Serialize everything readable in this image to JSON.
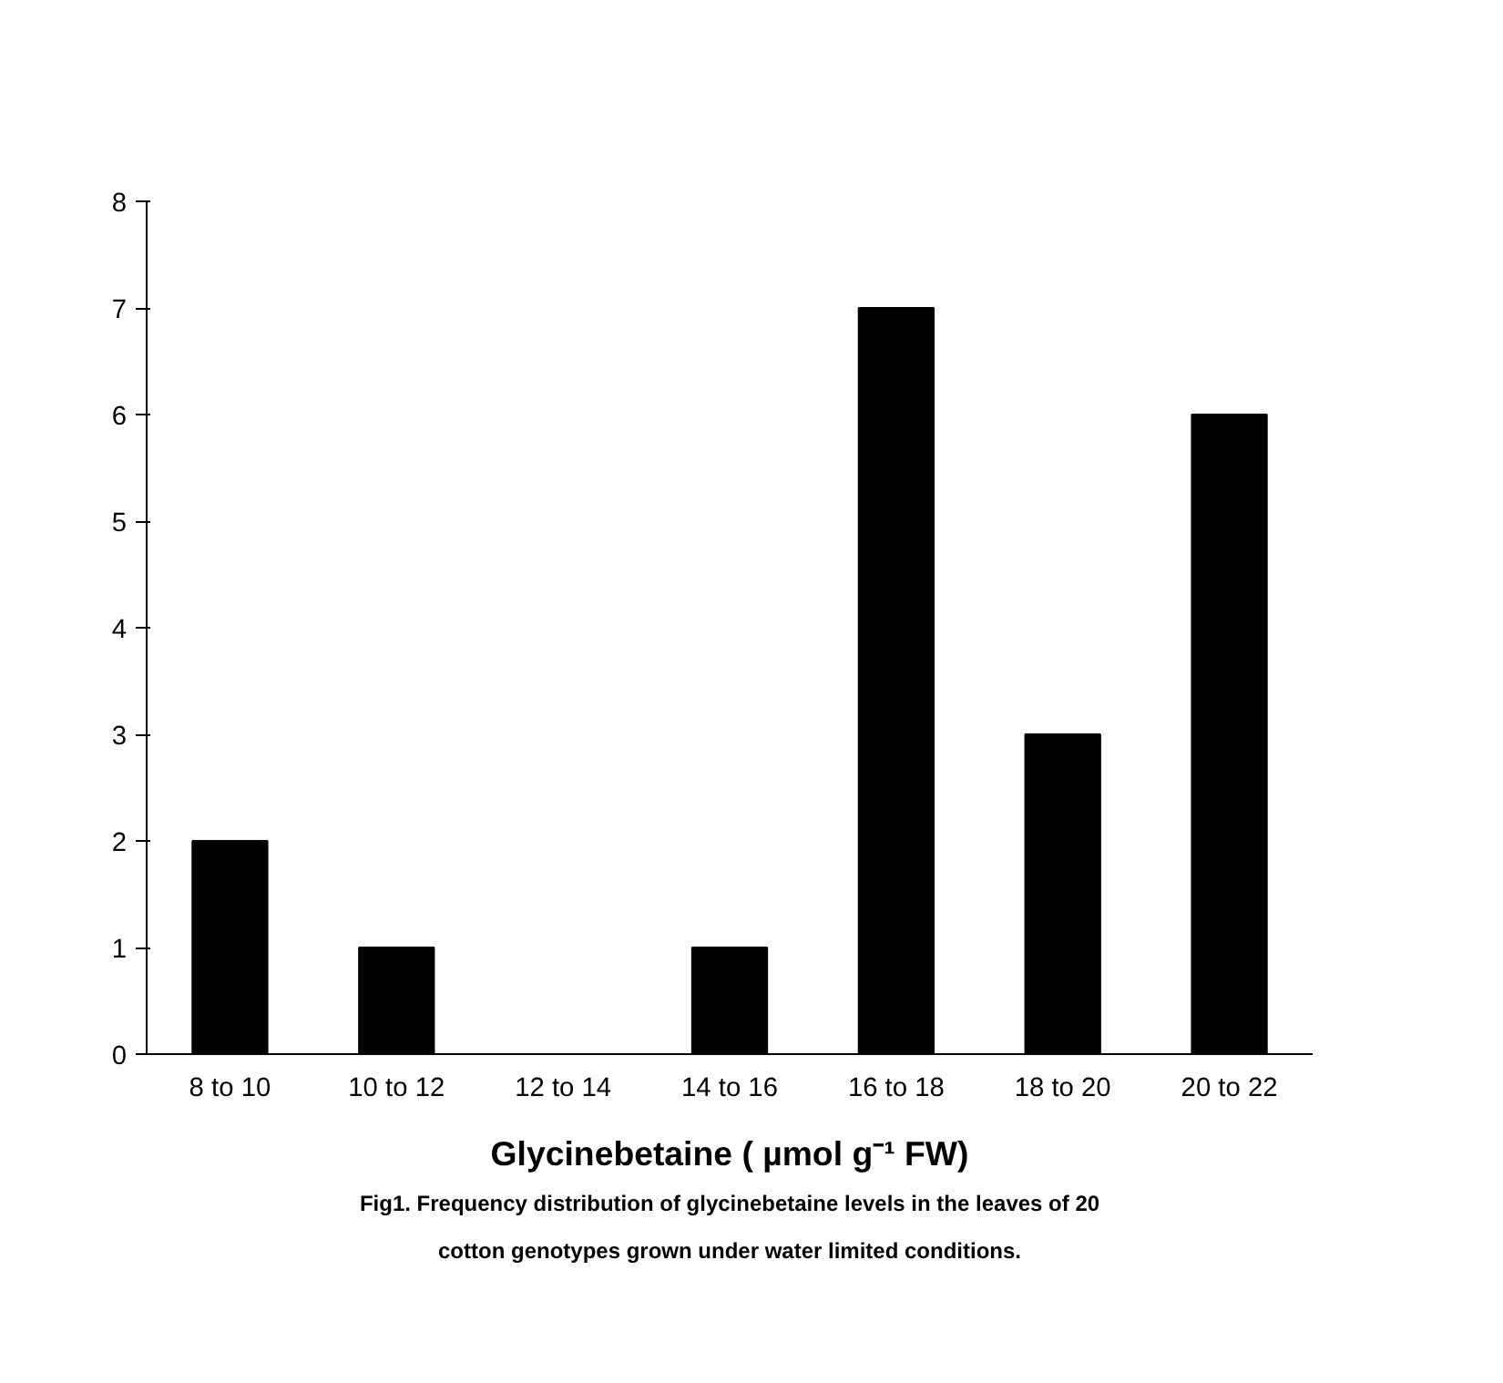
{
  "chart_data": {
    "type": "bar",
    "categories": [
      "8 to 10",
      "10 to 12",
      "12 to 14",
      "14 to 16",
      "16 to 18",
      "18 to 20",
      "20 to 22"
    ],
    "values": [
      2,
      1,
      0,
      1,
      7,
      3,
      6
    ],
    "color": "#000000",
    "xlabel": "Glycinebetaine ( µmol g⁻¹ FW)",
    "ylim": [
      0,
      8
    ],
    "yticks": [
      0,
      1,
      2,
      3,
      4,
      5,
      6,
      7,
      8
    ],
    "grid": false,
    "annotations": [
      "Fig1. Frequency distribution of glycinebetaine levels in the leaves of 20 cotton genotypes grown under water limited conditions."
    ]
  }
}
